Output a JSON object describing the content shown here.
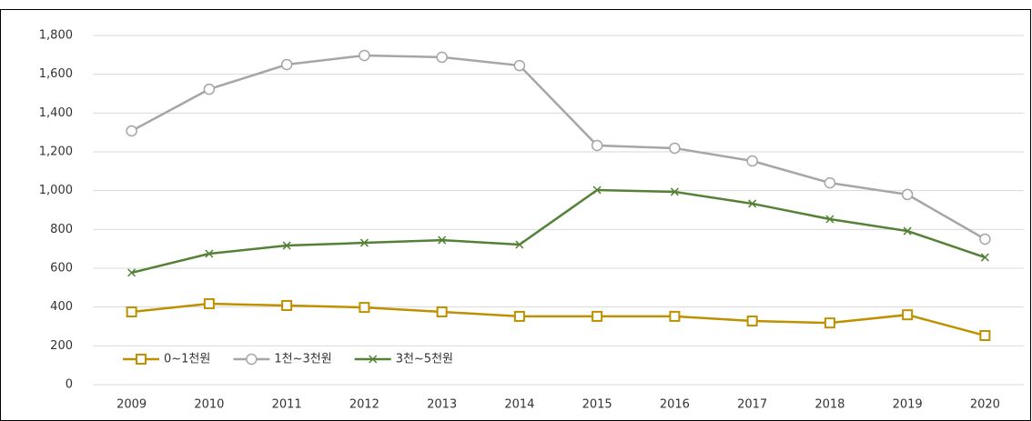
{
  "chart_data": {
    "type": "line",
    "categories": [
      "2009",
      "2010",
      "2011",
      "2012",
      "2013",
      "2014",
      "2015",
      "2016",
      "2017",
      "2018",
      "2019",
      "2020"
    ],
    "series": [
      {
        "name": "0~1천원",
        "color": "#bf9000",
        "marker": "square",
        "values": [
          375,
          417,
          408,
          398,
          375,
          352,
          352,
          352,
          328,
          318,
          360,
          253
        ]
      },
      {
        "name": "1천~3천원",
        "color": "#a6a6a6",
        "marker": "circle",
        "values": [
          1308,
          1523,
          1650,
          1697,
          1688,
          1645,
          1233,
          1219,
          1153,
          1040,
          980,
          750
        ]
      },
      {
        "name": "3천~5천원",
        "color": "#538135",
        "marker": "x",
        "values": [
          577,
          675,
          717,
          731,
          745,
          722,
          1003,
          994,
          933,
          853,
          792,
          656
        ]
      }
    ],
    "ylim": [
      0,
      1800
    ],
    "yticks": [
      0,
      {
        "value": 200,
        "label": "200"
      },
      {
        "value": 400,
        "label": "400"
      },
      {
        "value": 600,
        "label": "600"
      },
      {
        "value": 800,
        "label": "800"
      },
      {
        "value": 1000,
        "label": "1,000"
      },
      {
        "value": 1200,
        "label": "1,200"
      },
      {
        "value": 1400,
        "label": "1,400"
      },
      {
        "value": 1600,
        "label": "1,600"
      },
      {
        "value": 1800,
        "label": "1,800"
      }
    ],
    "grid": true,
    "legend": "bottom-left"
  }
}
